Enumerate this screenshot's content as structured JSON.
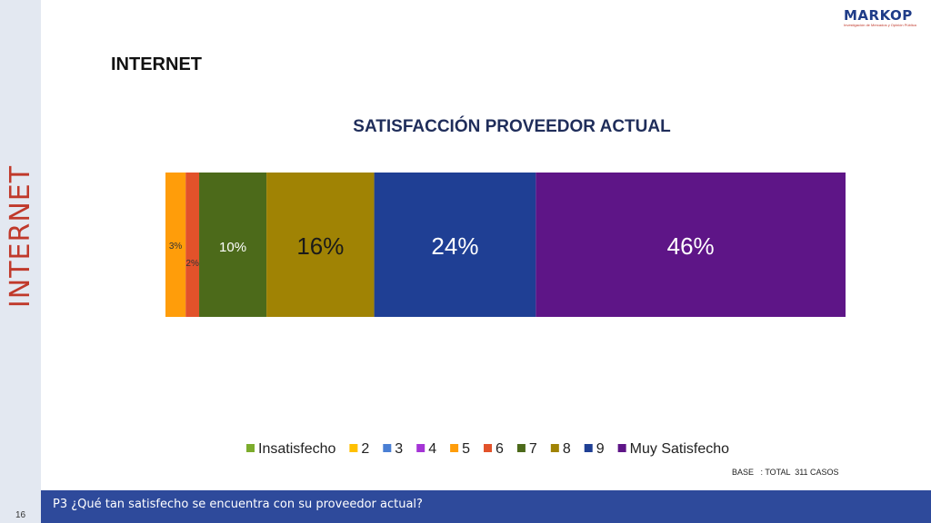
{
  "side_title": "INTERNET",
  "logo": {
    "name": "MARKOP",
    "tagline": "Investigación de Mercados y Opinión Pública"
  },
  "page_heading": "INTERNET",
  "footer": {
    "page_number": "16",
    "question": "P3 ¿Qué tan satisfecho se encuentra con su proveedor actual?",
    "base": "BASE   : TOTAL  311 CASOS"
  },
  "colors": {
    "sidebar": "#e3e8f1",
    "bottom_bar": "#2e4a9b",
    "side_title": "#c0392b"
  },
  "chart_data": {
    "type": "bar",
    "orientation": "horizontal-stacked-100",
    "title": "SATISFACCIÓN PROVEEDOR ACTUAL",
    "legend_position": "bottom",
    "grid": false,
    "series": [
      {
        "name": "Insatisfecho",
        "value": 0,
        "label": "",
        "color": "#7cac2c"
      },
      {
        "name": "2",
        "value": 0,
        "label": "",
        "color": "#ffc000"
      },
      {
        "name": "3",
        "value": 0,
        "label": "",
        "color": "#4a7fd4"
      },
      {
        "name": "4",
        "value": 0,
        "label": "",
        "color": "#a534d6"
      },
      {
        "name": "5",
        "value": 3,
        "label": "3%",
        "color": "#ff9d0a"
      },
      {
        "name": "6",
        "value": 2,
        "label": "2%",
        "color": "#e2522a"
      },
      {
        "name": "7",
        "value": 10,
        "label": "10%",
        "color": "#4c6a1a"
      },
      {
        "name": "8",
        "value": 16,
        "label": "16%",
        "color": "#a08304"
      },
      {
        "name": "9",
        "value": 24,
        "label": "24%",
        "color": "#1f3f94"
      },
      {
        "name": "Muy Satisfecho",
        "value": 46,
        "label": "46%",
        "color": "#5e1587"
      }
    ]
  }
}
